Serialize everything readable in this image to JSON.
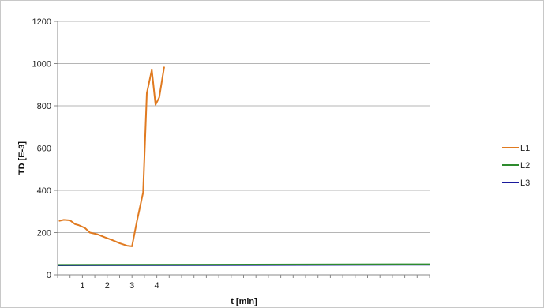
{
  "chart_data": {
    "type": "line",
    "xlabel": "t [min]",
    "ylabel": "TD [E-3]",
    "xlim": [
      0,
      15
    ],
    "ylim": [
      0,
      1200
    ],
    "yticks": [
      0,
      200,
      400,
      600,
      800,
      1000,
      1200
    ],
    "xticks": [
      1,
      2,
      3,
      4
    ],
    "minor_x_step": 0.5,
    "grid": "horizontal",
    "legend_position": "right",
    "series": [
      {
        "name": "L1",
        "color": "#e07a20",
        "x": [
          0.05,
          0.25,
          0.5,
          0.7,
          0.85,
          1.1,
          1.3,
          1.6,
          1.9,
          2.2,
          2.5,
          2.8,
          3.0,
          3.2,
          3.45,
          3.6,
          3.8,
          3.95,
          4.1,
          4.3
        ],
        "y": [
          255,
          260,
          258,
          240,
          235,
          222,
          200,
          192,
          178,
          165,
          150,
          138,
          135,
          255,
          390,
          860,
          970,
          805,
          840,
          985
        ]
      },
      {
        "name": "L2",
        "color": "#2e8b2e",
        "x": [
          0,
          15
        ],
        "y": [
          47,
          50
        ]
      },
      {
        "name": "L3",
        "color": "#1a1a9c",
        "x": [
          0,
          15
        ],
        "y": [
          45,
          48
        ]
      }
    ]
  }
}
